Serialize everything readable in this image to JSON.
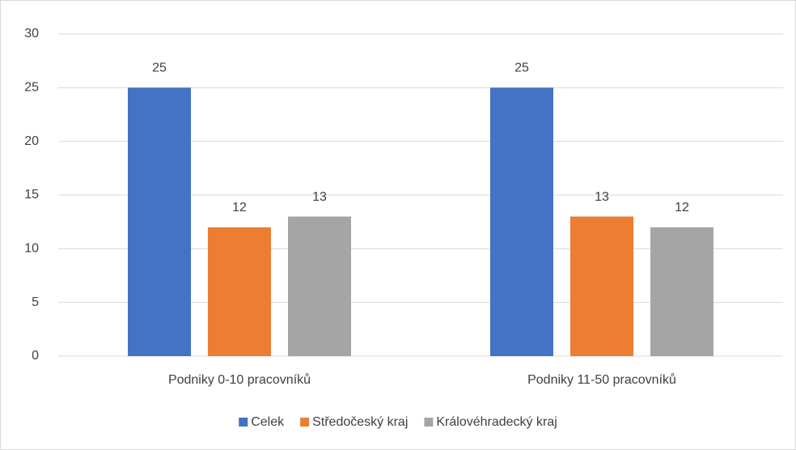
{
  "chart_data": {
    "type": "bar",
    "categories": [
      "Podniky 0-10 pracovníků",
      "Podniky 11-50 pracovníků"
    ],
    "series": [
      {
        "name": "Celek",
        "color": "#4472c4",
        "values": [
          25,
          25
        ]
      },
      {
        "name": "Středočeský kraj",
        "color": "#ed7d31",
        "values": [
          12,
          13
        ]
      },
      {
        "name": "Královéhradecký kraj",
        "color": "#a5a5a5",
        "values": [
          13,
          12
        ]
      }
    ],
    "ylim": [
      0,
      30
    ],
    "yticks": [
      0,
      5,
      10,
      15,
      20,
      25,
      30
    ],
    "grid": true,
    "legend": "bottom",
    "data_labels": true
  }
}
